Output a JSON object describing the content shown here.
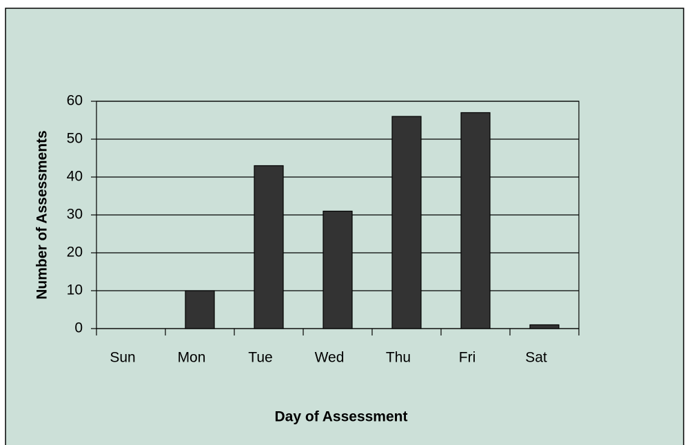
{
  "chart_data": {
    "type": "bar",
    "x_label": "Day of Assessment",
    "y_label": "Number of Assessments",
    "categories": [
      "Sun",
      "Mon",
      "Tue",
      "Wed",
      "Thu",
      "Fri",
      "Sat"
    ],
    "values": [
      0,
      10,
      43,
      31,
      56,
      57,
      1
    ],
    "color": "#333333",
    "background": "#cce0d8",
    "ylim": [
      0,
      60
    ],
    "yticks": [
      0,
      10,
      20,
      30,
      40,
      50,
      60
    ],
    "grid": true
  }
}
